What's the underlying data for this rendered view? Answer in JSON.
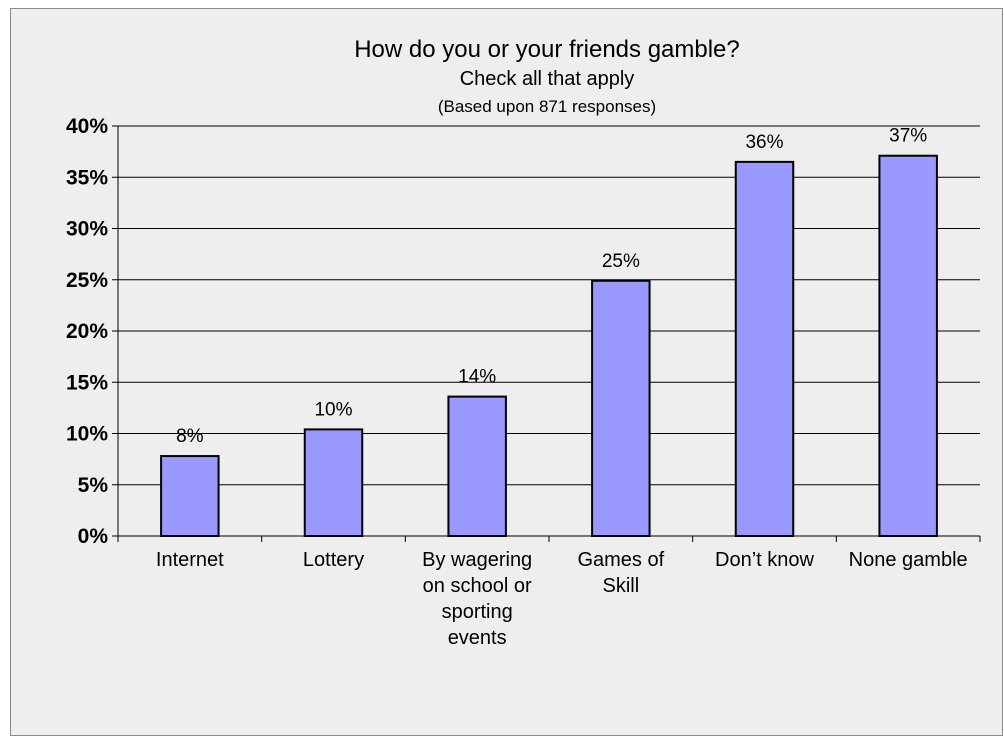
{
  "chart_data": {
    "type": "bar",
    "title": "How do you or your friends gamble?",
    "subtitle": "Check all that apply",
    "note": "(Based upon 871 responses)",
    "categories": [
      [
        "Internet"
      ],
      [
        "Lottery"
      ],
      [
        "By wagering",
        "on school or",
        "sporting",
        "events"
      ],
      [
        "Games of",
        "Skill"
      ],
      [
        "Don’t know"
      ],
      [
        "None gamble"
      ]
    ],
    "values": [
      7.8,
      10.4,
      13.6,
      24.9,
      36.5,
      37.1
    ],
    "data_labels": [
      "8%",
      "10%",
      "14%",
      "25%",
      "36%",
      "37%"
    ],
    "ylim": [
      0,
      40
    ],
    "yticks": [
      0,
      5,
      10,
      15,
      20,
      25,
      30,
      35,
      40
    ],
    "ytick_labels": [
      "0%",
      "5%",
      "10%",
      "15%",
      "20%",
      "25%",
      "30%",
      "35%",
      "40%"
    ],
    "grid": true,
    "legend": "none",
    "bar_color": "#9999ff",
    "bar_edge_color": "#000000",
    "background_color": "#eeeeee"
  }
}
